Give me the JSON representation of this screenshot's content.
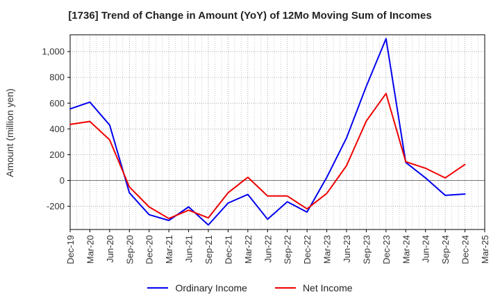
{
  "chart_data": {
    "type": "line",
    "title": "[1736]  Trend of Change in Amount (YoY) of 12Mo Moving Sum of Incomes",
    "xlabel": "",
    "ylabel": "Amount (million yen)",
    "ylim": [
      -380,
      1130
    ],
    "yticks": [
      -200,
      0,
      200,
      400,
      600,
      800,
      1000
    ],
    "ytick_labels": [
      "-200",
      "0",
      "200",
      "400",
      "600",
      "800",
      "1,000"
    ],
    "x_tick_labels": [
      "Dec-19",
      "Mar-20",
      "Jun-20",
      "Sep-20",
      "Dec-20",
      "Mar-21",
      "Jun-21",
      "Sep-21",
      "Dec-21",
      "Mar-22",
      "Jun-22",
      "Sep-22",
      "Dec-22",
      "Mar-23",
      "Jun-23",
      "Sep-23",
      "Dec-23",
      "Mar-24",
      "Jun-24",
      "Sep-24",
      "Dec-24",
      "Mar-25"
    ],
    "grid": true,
    "legend_position": "bottom",
    "series": [
      {
        "name": "Ordinary Income",
        "color": "#0000ee",
        "values": [
          555,
          608,
          430,
          -95,
          -265,
          -310,
          -205,
          -345,
          -175,
          -108,
          -300,
          -165,
          -245,
          25,
          330,
          730,
          1100,
          140,
          20,
          -115,
          -105
        ]
      },
      {
        "name": "Net Income",
        "color": "#ee0000",
        "values": [
          435,
          458,
          315,
          -50,
          -205,
          -295,
          -230,
          -290,
          -95,
          25,
          -120,
          -120,
          -220,
          -100,
          115,
          460,
          675,
          145,
          95,
          20,
          125
        ]
      }
    ]
  }
}
